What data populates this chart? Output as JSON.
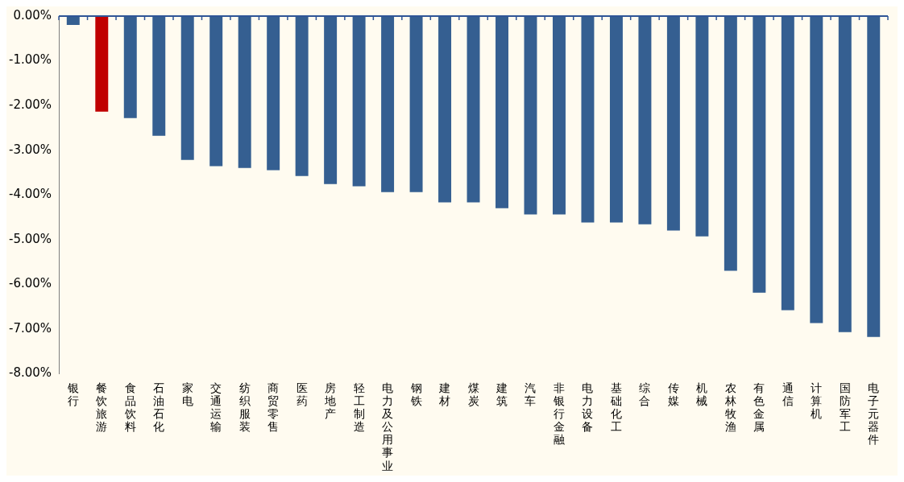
{
  "chart_data": {
    "type": "bar",
    "categories": [
      "银行",
      "餐饮旅游",
      "食品饮料",
      "石油石化",
      "家电",
      "交通运输",
      "纺织服装",
      "商贸零售",
      "医药",
      "房地产",
      "轻工制造",
      "电力及公用事业",
      "钢铁",
      "建材",
      "煤炭",
      "建筑",
      "汽车",
      "非银行金融",
      "电力设备",
      "基础化工",
      "综合",
      "传媒",
      "机械",
      "农林牧渔",
      "有色金属",
      "通信",
      "计算机",
      "国防军工",
      "电子元器件"
    ],
    "values": [
      -0.2,
      -2.14,
      -2.28,
      -2.68,
      -3.22,
      -3.36,
      -3.4,
      -3.45,
      -3.58,
      -3.76,
      -3.81,
      -3.94,
      -3.94,
      -4.17,
      -4.17,
      -4.3,
      -4.44,
      -4.44,
      -4.62,
      -4.62,
      -4.66,
      -4.8,
      -4.93,
      -5.7,
      -6.19,
      -6.58,
      -6.87,
      -7.07,
      -7.18
    ],
    "colors": [
      "#355f91",
      "#c00000",
      "#355f91",
      "#355f91",
      "#355f91",
      "#355f91",
      "#355f91",
      "#355f91",
      "#355f91",
      "#355f91",
      "#355f91",
      "#355f91",
      "#355f91",
      "#355f91",
      "#355f91",
      "#355f91",
      "#355f91",
      "#355f91",
      "#355f91",
      "#355f91",
      "#355f91",
      "#355f91",
      "#355f91",
      "#355f91",
      "#355f91",
      "#355f91",
      "#355f91",
      "#355f91",
      "#355f91"
    ],
    "ylim": [
      -8,
      0
    ],
    "yticks": [
      {
        "value": 0,
        "label": "0.00%"
      },
      {
        "value": -1,
        "label": "-1.00%"
      },
      {
        "value": -2,
        "label": "-2.00%"
      },
      {
        "value": -3,
        "label": "-3.00%"
      },
      {
        "value": -4,
        "label": "-4.00%"
      },
      {
        "value": -5,
        "label": "-5.00%"
      },
      {
        "value": -6,
        "label": "-6.00%"
      },
      {
        "value": -7,
        "label": "-7.00%"
      },
      {
        "value": -8,
        "label": "-8.00%"
      }
    ],
    "grid": false,
    "legend": false
  }
}
